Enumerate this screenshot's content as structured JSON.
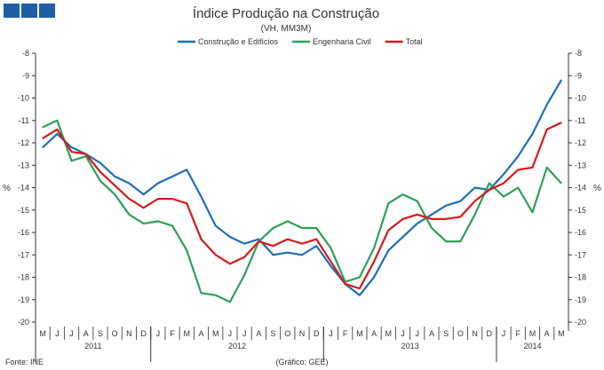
{
  "logo": {
    "color": "#1f5fa6"
  },
  "chart_data": {
    "type": "line",
    "title": "Índice Produção na Construção",
    "subtitle": "(VH, MM3M)",
    "ylabel": "%",
    "ylim": [
      -20,
      -8
    ],
    "yticks": [
      -8,
      -9,
      -10,
      -11,
      -12,
      -13,
      -14,
      -15,
      -16,
      -17,
      -18,
      -19,
      -20
    ],
    "months": [
      "M",
      "J",
      "J",
      "A",
      "S",
      "O",
      "N",
      "D",
      "J",
      "F",
      "M",
      "A",
      "M",
      "J",
      "J",
      "A",
      "S",
      "O",
      "N",
      "D",
      "J",
      "F",
      "M",
      "A",
      "M",
      "J",
      "J",
      "A",
      "S",
      "O",
      "N",
      "D",
      "J",
      "F",
      "M",
      "A",
      "M"
    ],
    "years": [
      {
        "label": "2011",
        "start": 0,
        "count": 8
      },
      {
        "label": "2012",
        "start": 8,
        "count": 12
      },
      {
        "label": "2013",
        "start": 20,
        "count": 12
      },
      {
        "label": "2014",
        "start": 32,
        "count": 5
      }
    ],
    "legend_position": "top",
    "series": [
      {
        "name": "Construção e Edifícios",
        "color": "#1f6fb4",
        "values": [
          -12.2,
          -11.6,
          -12.2,
          -12.5,
          -12.9,
          -13.5,
          -13.8,
          -14.3,
          -13.8,
          -13.5,
          -13.2,
          -14.4,
          -15.7,
          -16.2,
          -16.5,
          -16.3,
          -17.0,
          -16.9,
          -17.0,
          -16.6,
          -17.5,
          -18.3,
          -18.8,
          -18.0,
          -16.8,
          -16.2,
          -15.6,
          -15.2,
          -14.8,
          -14.6,
          -14.0,
          -14.1,
          -13.4,
          -12.6,
          -11.6,
          -10.3,
          -9.2
        ]
      },
      {
        "name": "Engenharia Civil",
        "color": "#2ca05a",
        "values": [
          -11.3,
          -11.0,
          -12.8,
          -12.6,
          -13.7,
          -14.3,
          -15.2,
          -15.6,
          -15.5,
          -15.7,
          -16.8,
          -18.7,
          -18.8,
          -19.1,
          -17.9,
          -16.4,
          -15.8,
          -15.5,
          -15.8,
          -15.8,
          -16.7,
          -18.2,
          -18.0,
          -16.7,
          -14.7,
          -14.3,
          -14.6,
          -15.8,
          -16.4,
          -16.4,
          -15.2,
          -13.8,
          -14.4,
          -14.0,
          -15.1,
          -13.1,
          -13.8
        ]
      },
      {
        "name": "Total",
        "color": "#d7191c",
        "values": [
          -11.8,
          -11.4,
          -12.4,
          -12.5,
          -13.3,
          -13.9,
          -14.5,
          -14.9,
          -14.5,
          -14.5,
          -14.7,
          -16.3,
          -17.0,
          -17.4,
          -17.1,
          -16.4,
          -16.6,
          -16.3,
          -16.5,
          -16.3,
          -17.3,
          -18.3,
          -18.5,
          -17.3,
          -15.9,
          -15.4,
          -15.2,
          -15.4,
          -15.4,
          -15.3,
          -14.6,
          -14.1,
          -13.8,
          -13.2,
          -13.1,
          -11.4,
          -11.1
        ]
      }
    ],
    "source": "Fonte: INE",
    "credit": "(Gráfico: GEE)"
  }
}
